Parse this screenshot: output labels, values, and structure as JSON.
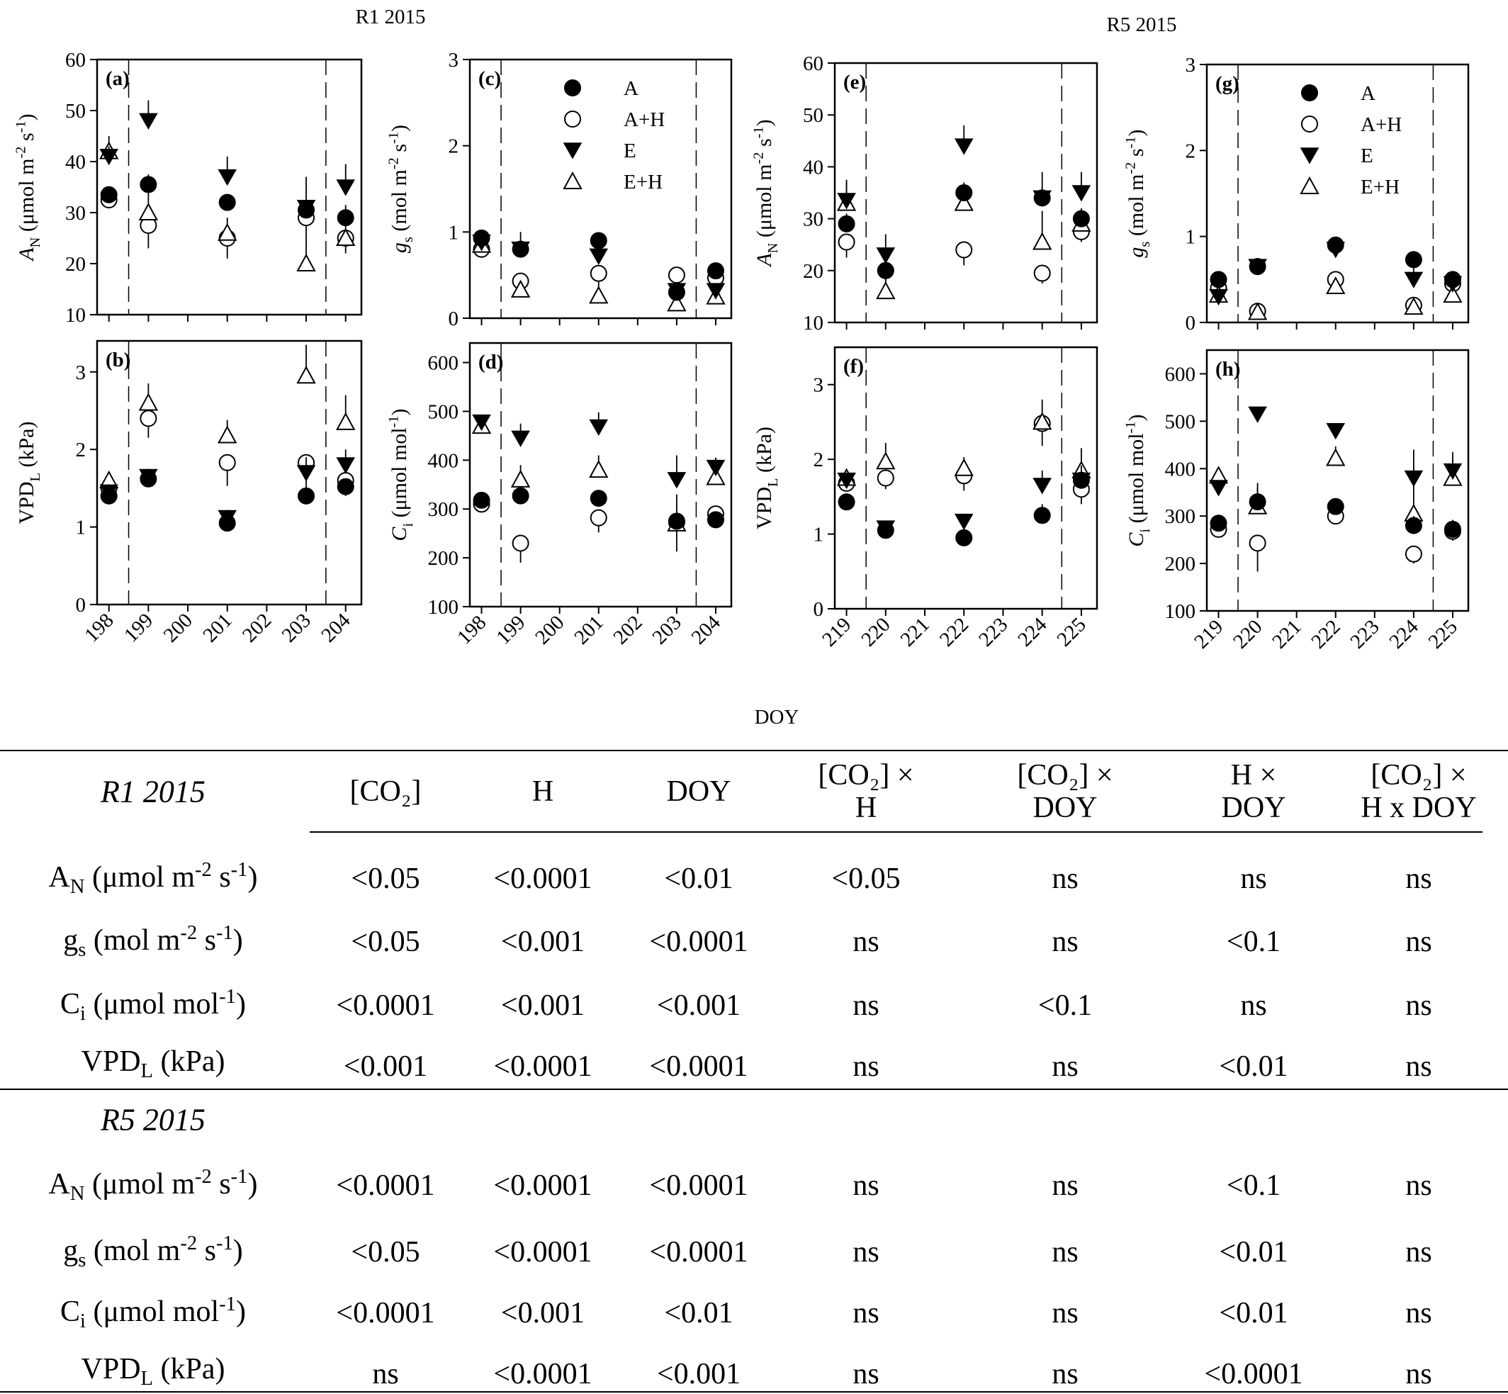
{
  "figure": {
    "group_titles": [
      "R1 2015",
      "R5 2015"
    ],
    "shared_xlabel": "DOY",
    "legend": [
      {
        "label": "A",
        "marker": "filled-circle"
      },
      {
        "label": "A+H",
        "marker": "open-circle"
      },
      {
        "label": "E",
        "marker": "filled-triangle-down"
      },
      {
        "label": "E+H",
        "marker": "open-triangle-up"
      }
    ]
  },
  "chart_data": [
    {
      "type": "scatter",
      "panel_label": "(a)",
      "ylabel": "A_N (μmol m^-2 s^-1)",
      "xlim": [
        197.7,
        204.4
      ],
      "ylim": [
        10,
        60
      ],
      "yticks": [
        10,
        20,
        30,
        40,
        50,
        60
      ],
      "xticks": [],
      "dashed_x": [
        198.5,
        203.5
      ],
      "series": [
        {
          "name": "A",
          "x": [
            198,
            199,
            201,
            203,
            204
          ],
          "y": [
            33.5,
            35.5,
            32,
            30.5,
            29
          ],
          "err": [
            1,
            2,
            1,
            2,
            2.5
          ]
        },
        {
          "name": "A+H",
          "x": [
            198,
            199,
            201,
            203,
            204
          ],
          "y": [
            32.5,
            27.5,
            25,
            29,
            25
          ],
          "err": [
            1.5,
            4.5,
            4,
            3,
            3
          ]
        },
        {
          "name": "E",
          "x": [
            198,
            199,
            201,
            203,
            204
          ],
          "y": [
            41,
            48,
            37,
            31,
            35
          ],
          "err": [
            2,
            4,
            4,
            6,
            4.5
          ]
        },
        {
          "name": "E+H",
          "x": [
            198,
            199,
            201,
            203,
            204
          ],
          "y": [
            42,
            30,
            26,
            20,
            25
          ],
          "err": [
            3,
            4,
            3,
            6,
            5
          ]
        }
      ]
    },
    {
      "type": "scatter",
      "panel_label": "(b)",
      "ylabel": "VPD_L (kPa)",
      "xlim": [
        197.7,
        204.4
      ],
      "ylim": [
        0,
        3.4
      ],
      "yticks": [
        0,
        1,
        2,
        3
      ],
      "xticks": [
        198,
        199,
        200,
        201,
        202,
        203,
        204
      ],
      "dashed_x": [
        198.5,
        203.5
      ],
      "series": [
        {
          "name": "A",
          "x": [
            198,
            199,
            201,
            203,
            204
          ],
          "y": [
            1.4,
            1.62,
            1.05,
            1.4,
            1.52
          ],
          "err": [
            0.05,
            0.1,
            0.05,
            0.2,
            0.1
          ]
        },
        {
          "name": "A+H",
          "x": [
            198,
            199,
            201,
            203,
            204
          ],
          "y": [
            1.5,
            2.4,
            1.83,
            1.83,
            1.6
          ],
          "err": [
            0.1,
            0.25,
            0.3,
            0.2,
            0.2
          ]
        },
        {
          "name": "E",
          "x": [
            198,
            199,
            201,
            203,
            204
          ],
          "y": [
            1.45,
            1.65,
            1.12,
            1.7,
            1.8
          ],
          "err": [
            0.1,
            0.1,
            0.1,
            0.2,
            0.2
          ]
        },
        {
          "name": "E+H",
          "x": [
            198,
            199,
            201,
            203,
            204
          ],
          "y": [
            1.6,
            2.6,
            2.18,
            2.95,
            2.35
          ],
          "err": [
            0.1,
            0.25,
            0.2,
            0.4,
            0.35
          ]
        }
      ]
    },
    {
      "type": "scatter",
      "panel_label": "(c)",
      "ylabel": "g_s (mol m^-2 s^-1)",
      "xlim": [
        197.7,
        204.4
      ],
      "ylim": [
        0,
        3
      ],
      "yticks": [
        0,
        1,
        2,
        3
      ],
      "xticks": [],
      "dashed_x": [
        198.5,
        203.5
      ],
      "series": [
        {
          "name": "A",
          "x": [
            198,
            199,
            201,
            203,
            204
          ],
          "y": [
            0.93,
            0.8,
            0.9,
            0.3,
            0.55
          ],
          "err": [
            0.05,
            0.1,
            0.05,
            0.05,
            0.05
          ]
        },
        {
          "name": "A+H",
          "x": [
            198,
            199,
            201,
            203,
            204
          ],
          "y": [
            0.8,
            0.43,
            0.52,
            0.5,
            0.47
          ],
          "err": [
            0.1,
            0.15,
            0.2,
            0.1,
            0.1
          ]
        },
        {
          "name": "E",
          "x": [
            198,
            199,
            201,
            203,
            204
          ],
          "y": [
            0.88,
            0.8,
            0.72,
            0.32,
            0.32
          ],
          "err": [
            0.05,
            0.2,
            0.1,
            0.1,
            0.05
          ]
        },
        {
          "name": "E+H",
          "x": [
            198,
            199,
            201,
            203,
            204
          ],
          "y": [
            0.85,
            0.33,
            0.26,
            0.17,
            0.25
          ],
          "err": [
            0.05,
            0.1,
            0.1,
            0.1,
            0.05
          ]
        }
      ]
    },
    {
      "type": "scatter",
      "panel_label": "(d)",
      "ylabel": "C_i (μmol mol^-1)",
      "xlim": [
        197.7,
        204.4
      ],
      "ylim": [
        100,
        640
      ],
      "yticks": [
        100,
        200,
        300,
        400,
        500,
        600
      ],
      "xticks": [
        198,
        199,
        200,
        201,
        202,
        203,
        204
      ],
      "dashed_x": [
        198.5,
        203.5
      ],
      "series": [
        {
          "name": "A",
          "x": [
            198,
            199,
            201,
            203,
            204
          ],
          "y": [
            318,
            327,
            322,
            275,
            278
          ],
          "err": [
            5,
            15,
            15,
            20,
            10
          ]
        },
        {
          "name": "A+H",
          "x": [
            198,
            199,
            201,
            203,
            204
          ],
          "y": [
            310,
            230,
            282,
            273,
            290
          ],
          "err": [
            10,
            40,
            30,
            60,
            20
          ]
        },
        {
          "name": "E",
          "x": [
            198,
            199,
            201,
            203,
            204
          ],
          "y": [
            478,
            445,
            468,
            360,
            385
          ],
          "err": [
            10,
            30,
            30,
            50,
            20
          ]
        },
        {
          "name": "E+H",
          "x": [
            198,
            199,
            201,
            203,
            204
          ],
          "y": [
            470,
            360,
            380,
            270,
            365
          ],
          "err": [
            15,
            30,
            30,
            60,
            40
          ]
        }
      ]
    },
    {
      "type": "scatter",
      "panel_label": "(e)",
      "ylabel": "A_N (μmol m^-2 s^-1)",
      "xlim": [
        218.7,
        225.4
      ],
      "ylim": [
        10,
        60
      ],
      "yticks": [
        10,
        20,
        30,
        40,
        50,
        60
      ],
      "xticks": [],
      "dashed_x": [
        219.5,
        224.5
      ],
      "series": [
        {
          "name": "A",
          "x": [
            219,
            220,
            222,
            224,
            225
          ],
          "y": [
            29,
            20,
            35,
            34,
            30
          ],
          "err": [
            2,
            2,
            2,
            2,
            2
          ]
        },
        {
          "name": "A+H",
          "x": [
            219,
            220,
            222,
            224,
            225
          ],
          "y": [
            25.5,
            20,
            24,
            19.5,
            27.5
          ],
          "err": [
            3,
            2,
            3,
            2,
            2
          ]
        },
        {
          "name": "E",
          "x": [
            219,
            220,
            222,
            224,
            225
          ],
          "y": [
            33.5,
            23,
            44,
            34,
            35
          ],
          "err": [
            4,
            4,
            4,
            5,
            4
          ]
        },
        {
          "name": "E+H",
          "x": [
            219,
            220,
            222,
            224,
            225
          ],
          "y": [
            33,
            16,
            33,
            25.5,
            29
          ],
          "err": [
            4,
            3,
            3,
            6,
            3
          ]
        }
      ]
    },
    {
      "type": "scatter",
      "panel_label": "(f)",
      "ylabel": "VPD_L (kPa)",
      "xlim": [
        218.7,
        225.4
      ],
      "ylim": [
        0,
        3.5
      ],
      "yticks": [
        0,
        1,
        2,
        3
      ],
      "xticks": [
        219,
        220,
        221,
        222,
        223,
        224,
        225
      ],
      "dashed_x": [
        219.5,
        224.5
      ],
      "series": [
        {
          "name": "A",
          "x": [
            219,
            220,
            222,
            224,
            225
          ],
          "y": [
            1.43,
            1.05,
            0.95,
            1.25,
            1.72
          ],
          "err": [
            0.1,
            0.05,
            0.1,
            0.15,
            0.1
          ]
        },
        {
          "name": "A+H",
          "x": [
            219,
            220,
            222,
            224,
            225
          ],
          "y": [
            1.68,
            1.75,
            1.78,
            2.48,
            1.6
          ],
          "err": [
            0.1,
            0.15,
            0.2,
            0.3,
            0.2
          ]
        },
        {
          "name": "E",
          "x": [
            219,
            220,
            222,
            224,
            225
          ],
          "y": [
            1.72,
            1.08,
            1.17,
            1.65,
            1.72
          ],
          "err": [
            0.05,
            0.05,
            0.1,
            0.2,
            0.2
          ]
        },
        {
          "name": "E+H",
          "x": [
            219,
            220,
            222,
            224,
            225
          ],
          "y": [
            1.75,
            1.97,
            1.88,
            2.5,
            1.85
          ],
          "err": [
            0.1,
            0.25,
            0.15,
            0.3,
            0.3
          ]
        }
      ]
    },
    {
      "type": "scatter",
      "panel_label": "(g)",
      "ylabel": "g_s (mol m^-2 s^-1)",
      "xlim": [
        218.7,
        225.4
      ],
      "ylim": [
        0,
        3
      ],
      "yticks": [
        0,
        1,
        2,
        3
      ],
      "xticks": [],
      "dashed_x": [
        219.5,
        224.5
      ],
      "series": [
        {
          "name": "A",
          "x": [
            219,
            220,
            222,
            224,
            225
          ],
          "y": [
            0.5,
            0.65,
            0.9,
            0.73,
            0.5
          ],
          "err": [
            0.05,
            0.1,
            0.05,
            0.1,
            0.05
          ]
        },
        {
          "name": "A+H",
          "x": [
            219,
            220,
            222,
            224,
            225
          ],
          "y": [
            0.4,
            0.13,
            0.5,
            0.2,
            0.45
          ],
          "err": [
            0.05,
            0.05,
            0.05,
            0.1,
            0.05
          ]
        },
        {
          "name": "E",
          "x": [
            219,
            220,
            222,
            224,
            225
          ],
          "y": [
            0.3,
            0.65,
            0.85,
            0.5,
            0.45
          ],
          "err": [
            0.05,
            0.1,
            0.05,
            0.3,
            0.05
          ]
        },
        {
          "name": "E+H",
          "x": [
            219,
            220,
            222,
            224,
            225
          ],
          "y": [
            0.32,
            0.12,
            0.42,
            0.18,
            0.32
          ],
          "err": [
            0.05,
            0.05,
            0.05,
            0.1,
            0.05
          ]
        }
      ]
    },
    {
      "type": "scatter",
      "panel_label": "(h)",
      "ylabel": "C_i (μmol mol^-1)",
      "xlim": [
        218.7,
        225.4
      ],
      "ylim": [
        100,
        650
      ],
      "yticks": [
        100,
        200,
        300,
        400,
        500,
        600
      ],
      "xticks": [
        219,
        220,
        221,
        222,
        223,
        224,
        225
      ],
      "dashed_x": [
        219.5,
        224.5
      ],
      "series": [
        {
          "name": "A",
          "x": [
            219,
            220,
            222,
            224,
            225
          ],
          "y": [
            285,
            330,
            320,
            280,
            272
          ],
          "err": [
            10,
            40,
            10,
            20,
            20
          ]
        },
        {
          "name": "A+H",
          "x": [
            219,
            220,
            222,
            224,
            225
          ],
          "y": [
            272,
            243,
            300,
            220,
            268
          ],
          "err": [
            10,
            60,
            10,
            20,
            20
          ]
        },
        {
          "name": "E",
          "x": [
            219,
            220,
            222,
            224,
            225
          ],
          "y": [
            360,
            515,
            480,
            380,
            395
          ],
          "err": [
            15,
            15,
            15,
            60,
            40
          ]
        },
        {
          "name": "E+H",
          "x": [
            219,
            220,
            222,
            224,
            225
          ],
          "y": [
            385,
            320,
            422,
            305,
            380
          ],
          "err": [
            15,
            40,
            25,
            60,
            40
          ]
        }
      ]
    },
    {
      "type": "table",
      "columns": [
        "[CO₂]",
        "H",
        "DOY",
        "[CO₂] × H",
        "[CO₂] × DOY",
        "H × DOY",
        "[CO₂] × H x DOY"
      ],
      "sections": [
        {
          "title": "R1 2015",
          "rows": [
            {
              "label": "A_N (μmol m^-2 s^-1)",
              "values": [
                "<0.05",
                "<0.0001",
                "<0.01",
                "<0.05",
                "ns",
                "ns",
                "ns"
              ]
            },
            {
              "label": "g_s (mol m^-2 s^-1)",
              "values": [
                "<0.05",
                "<0.001",
                "<0.0001",
                "ns",
                "ns",
                "<0.1",
                "ns"
              ]
            },
            {
              "label": "C_i (μmol mol^-1)",
              "values": [
                "<0.0001",
                "<0.001",
                "<0.001",
                "ns",
                "<0.1",
                "ns",
                "ns"
              ]
            },
            {
              "label": "VPD_L (kPa)",
              "values": [
                "<0.001",
                "<0.0001",
                "<0.0001",
                "ns",
                "ns",
                "<0.01",
                "ns"
              ]
            }
          ]
        },
        {
          "title": "R5 2015",
          "rows": [
            {
              "label": "A_N (μmol m^-2 s^-1)",
              "values": [
                "<0.0001",
                "<0.0001",
                "<0.0001",
                "ns",
                "ns",
                "<0.1",
                "ns"
              ]
            },
            {
              "label": "g_s (mol m^-2 s^-1)",
              "values": [
                "<0.05",
                "<0.0001",
                "<0.0001",
                "ns",
                "ns",
                "<0.01",
                "ns"
              ]
            },
            {
              "label": "C_i (μmol mol^-1)",
              "values": [
                "<0.0001",
                "<0.001",
                "<0.01",
                "ns",
                "ns",
                "<0.01",
                "ns"
              ]
            },
            {
              "label": "VPD_L (kPa)",
              "values": [
                "ns",
                "<0.0001",
                "<0.001",
                "ns",
                "ns",
                "<0.0001",
                "ns"
              ]
            }
          ]
        }
      ]
    }
  ]
}
